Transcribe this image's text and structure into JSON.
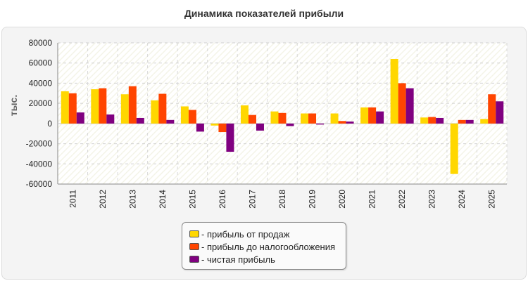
{
  "chart_data": {
    "type": "bar",
    "title": "Динамика показателей прибыли",
    "ylabel": "тыс.",
    "xlabel": "",
    "ylim": [
      -60000,
      80000
    ],
    "yticks": [
      80000,
      60000,
      40000,
      20000,
      0,
      -20000,
      -40000,
      -60000
    ],
    "categories": [
      "2011",
      "2012",
      "2013",
      "2014",
      "2015",
      "2016",
      "2017",
      "2018",
      "2019",
      "2020",
      "2021",
      "2022",
      "2023",
      "2024",
      "2025"
    ],
    "series": [
      {
        "name": "- прибыль от продаж",
        "color": "#ffd700",
        "values": [
          32000,
          34000,
          29000,
          23000,
          17000,
          -2000,
          18000,
          12000,
          10000,
          10000,
          16000,
          64000,
          6000,
          -50000,
          4500
        ]
      },
      {
        "name": "- прибыль до налогообложения",
        "color": "#ff4500",
        "values": [
          30000,
          35000,
          37000,
          29500,
          13500,
          -8500,
          8500,
          10500,
          10000,
          2500,
          16000,
          40000,
          6500,
          3500,
          29000
        ]
      },
      {
        "name": "- чистая прибыль",
        "color": "#800080",
        "values": [
          11000,
          9000,
          5500,
          3500,
          -8000,
          -28000,
          -7000,
          -2500,
          -1000,
          2000,
          12000,
          35000,
          5500,
          3500,
          22000
        ]
      }
    ],
    "grid": true,
    "legend_position": "bottom"
  }
}
